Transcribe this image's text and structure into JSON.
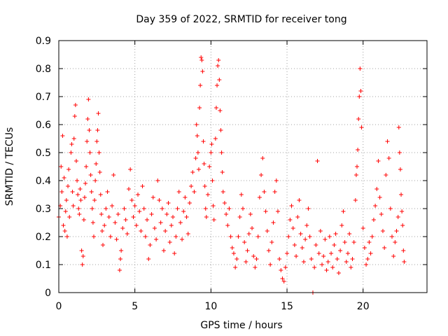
{
  "chart_data": {
    "type": "scatter",
    "title": "Day 359 of 2022, SRMTID for receiver tong",
    "xlabel": "GPS time / hours",
    "ylabel": "SRMTID / TECUs",
    "xlim": [
      0,
      24.2
    ],
    "ylim": [
      0,
      0.9
    ],
    "xticks": [
      0,
      5,
      10,
      15,
      20
    ],
    "yticks": [
      0,
      0.1,
      0.2,
      0.3,
      0.4,
      0.5,
      0.6,
      0.7,
      0.8,
      0.9
    ],
    "xtick_labels": [
      "0",
      "5",
      "10",
      "15",
      "20"
    ],
    "ytick_labels": [
      "0",
      "0.1",
      "0.2",
      "0.3",
      "0.4",
      "0.5",
      "0.6",
      "0.7",
      "0.8",
      "0.9"
    ],
    "grid": true,
    "marker": "plus",
    "color": "#ff0000",
    "series": [
      {
        "name": "SRMTID",
        "points": [
          [
            0.0,
            0.27
          ],
          [
            0.1,
            0.31
          ],
          [
            0.15,
            0.45
          ],
          [
            0.2,
            0.36
          ],
          [
            0.25,
            0.56
          ],
          [
            0.3,
            0.24
          ],
          [
            0.35,
            0.41
          ],
          [
            0.4,
            0.22
          ],
          [
            0.45,
            0.29
          ],
          [
            0.5,
            0.33
          ],
          [
            0.55,
            0.2
          ],
          [
            0.6,
            0.38
          ],
          [
            0.65,
            0.44
          ],
          [
            0.7,
            0.27
          ],
          [
            0.8,
            0.5
          ],
          [
            0.85,
            0.53
          ],
          [
            0.9,
            0.36
          ],
          [
            0.95,
            0.31
          ],
          [
            1.0,
            0.55
          ],
          [
            1.05,
            0.63
          ],
          [
            1.1,
            0.67
          ],
          [
            1.15,
            0.47
          ],
          [
            1.2,
            0.4
          ],
          [
            1.25,
            0.35
          ],
          [
            1.3,
            0.3
          ],
          [
            1.35,
            0.28
          ],
          [
            1.4,
            0.37
          ],
          [
            1.45,
            0.33
          ],
          [
            1.5,
            0.15
          ],
          [
            1.55,
            0.1
          ],
          [
            1.6,
            0.13
          ],
          [
            1.65,
            0.26
          ],
          [
            1.7,
            0.34
          ],
          [
            1.75,
            0.39
          ],
          [
            1.8,
            0.45
          ],
          [
            1.85,
            0.54
          ],
          [
            1.9,
            0.62
          ],
          [
            1.95,
            0.69
          ],
          [
            2.0,
            0.58
          ],
          [
            2.05,
            0.5
          ],
          [
            2.1,
            0.42
          ],
          [
            2.15,
            0.36
          ],
          [
            2.2,
            0.3
          ],
          [
            2.25,
            0.25
          ],
          [
            2.3,
            0.2
          ],
          [
            2.35,
            0.33
          ],
          [
            2.4,
            0.4
          ],
          [
            2.45,
            0.46
          ],
          [
            2.5,
            0.54
          ],
          [
            2.55,
            0.58
          ],
          [
            2.6,
            0.64
          ],
          [
            2.65,
            0.5
          ],
          [
            2.7,
            0.43
          ],
          [
            2.75,
            0.35
          ],
          [
            2.8,
            0.28
          ],
          [
            2.85,
            0.22
          ],
          [
            2.9,
            0.17
          ],
          [
            3.0,
            0.24
          ],
          [
            3.1,
            0.3
          ],
          [
            3.2,
            0.36
          ],
          [
            3.3,
            0.27
          ],
          [
            3.4,
            0.2
          ],
          [
            3.5,
            0.31
          ],
          [
            3.6,
            0.42
          ],
          [
            3.7,
            0.25
          ],
          [
            3.8,
            0.19
          ],
          [
            3.9,
            0.28
          ],
          [
            4.0,
            0.08
          ],
          [
            4.05,
            0.12
          ],
          [
            4.1,
            0.15
          ],
          [
            4.2,
            0.23
          ],
          [
            4.3,
            0.3
          ],
          [
            4.4,
            0.26
          ],
          [
            4.5,
            0.21
          ],
          [
            4.6,
            0.37
          ],
          [
            4.7,
            0.44
          ],
          [
            4.8,
            0.33
          ],
          [
            4.9,
            0.27
          ],
          [
            5.0,
            0.31
          ],
          [
            5.1,
            0.24
          ],
          [
            5.2,
            0.35
          ],
          [
            5.3,
            0.29
          ],
          [
            5.4,
            0.22
          ],
          [
            5.5,
            0.38
          ],
          [
            5.6,
            0.3
          ],
          [
            5.7,
            0.2
          ],
          [
            5.8,
            0.26
          ],
          [
            5.9,
            0.12
          ],
          [
            6.0,
            0.17
          ],
          [
            6.1,
            0.28
          ],
          [
            6.2,
            0.34
          ],
          [
            6.3,
            0.23
          ],
          [
            6.4,
            0.19
          ],
          [
            6.5,
            0.4
          ],
          [
            6.6,
            0.33
          ],
          [
            6.7,
            0.25
          ],
          [
            6.8,
            0.3
          ],
          [
            6.9,
            0.15
          ],
          [
            7.0,
            0.22
          ],
          [
            7.1,
            0.28
          ],
          [
            7.2,
            0.32
          ],
          [
            7.3,
            0.18
          ],
          [
            7.4,
            0.24
          ],
          [
            7.5,
            0.27
          ],
          [
            7.6,
            0.14
          ],
          [
            7.7,
            0.2
          ],
          [
            7.8,
            0.3
          ],
          [
            7.9,
            0.36
          ],
          [
            8.0,
            0.25
          ],
          [
            8.1,
            0.19
          ],
          [
            8.2,
            0.29
          ],
          [
            8.3,
            0.34
          ],
          [
            8.4,
            0.27
          ],
          [
            8.5,
            0.21
          ],
          [
            8.6,
            0.32
          ],
          [
            8.7,
            0.38
          ],
          [
            8.8,
            0.43
          ],
          [
            8.9,
            0.36
          ],
          [
            9.0,
            0.48
          ],
          [
            9.05,
            0.6
          ],
          [
            9.1,
            0.56
          ],
          [
            9.15,
            0.5
          ],
          [
            9.2,
            0.44
          ],
          [
            9.25,
            0.66
          ],
          [
            9.3,
            0.74
          ],
          [
            9.35,
            0.84
          ],
          [
            9.4,
            0.83
          ],
          [
            9.45,
            0.79
          ],
          [
            9.5,
            0.54
          ],
          [
            9.55,
            0.46
          ],
          [
            9.6,
            0.38
          ],
          [
            9.65,
            0.3
          ],
          [
            9.7,
            0.27
          ],
          [
            9.8,
            0.35
          ],
          [
            9.9,
            0.45
          ],
          [
            10.0,
            0.5
          ],
          [
            10.05,
            0.53
          ],
          [
            10.1,
            0.4
          ],
          [
            10.15,
            0.31
          ],
          [
            10.2,
            0.26
          ],
          [
            10.3,
            0.55
          ],
          [
            10.35,
            0.66
          ],
          [
            10.4,
            0.74
          ],
          [
            10.45,
            0.81
          ],
          [
            10.5,
            0.83
          ],
          [
            10.55,
            0.76
          ],
          [
            10.6,
            0.65
          ],
          [
            10.65,
            0.58
          ],
          [
            10.7,
            0.5
          ],
          [
            10.75,
            0.43
          ],
          [
            10.8,
            0.36
          ],
          [
            10.9,
            0.32
          ],
          [
            11.0,
            0.28
          ],
          [
            11.1,
            0.24
          ],
          [
            11.2,
            0.3
          ],
          [
            11.3,
            0.2
          ],
          [
            11.4,
            0.16
          ],
          [
            11.5,
            0.14
          ],
          [
            11.6,
            0.09
          ],
          [
            11.7,
            0.12
          ],
          [
            11.8,
            0.2
          ],
          [
            11.9,
            0.27
          ],
          [
            12.0,
            0.35
          ],
          [
            12.1,
            0.3
          ],
          [
            12.2,
            0.18
          ],
          [
            12.3,
            0.11
          ],
          [
            12.4,
            0.15
          ],
          [
            12.5,
            0.21
          ],
          [
            12.6,
            0.28
          ],
          [
            12.7,
            0.23
          ],
          [
            12.8,
            0.13
          ],
          [
            12.9,
            0.09
          ],
          [
            13.0,
            0.12
          ],
          [
            13.1,
            0.2
          ],
          [
            13.2,
            0.34
          ],
          [
            13.3,
            0.42
          ],
          [
            13.4,
            0.48
          ],
          [
            13.5,
            0.36
          ],
          [
            13.6,
            0.29
          ],
          [
            13.7,
            0.22
          ],
          [
            13.8,
            0.15
          ],
          [
            13.9,
            0.1
          ],
          [
            14.0,
            0.18
          ],
          [
            14.1,
            0.25
          ],
          [
            14.2,
            0.36
          ],
          [
            14.3,
            0.4
          ],
          [
            14.4,
            0.29
          ],
          [
            14.5,
            0.12
          ],
          [
            14.6,
            0.08
          ],
          [
            14.7,
            0.05
          ],
          [
            14.8,
            0.04
          ],
          [
            14.9,
            0.09
          ],
          [
            15.0,
            0.14
          ],
          [
            15.1,
            0.2
          ],
          [
            15.2,
            0.26
          ],
          [
            15.3,
            0.31
          ],
          [
            15.4,
            0.23
          ],
          [
            15.5,
            0.17
          ],
          [
            15.6,
            0.13
          ],
          [
            15.7,
            0.27
          ],
          [
            15.8,
            0.33
          ],
          [
            15.9,
            0.21
          ],
          [
            16.0,
            0.16
          ],
          [
            16.1,
            0.11
          ],
          [
            16.2,
            0.19
          ],
          [
            16.3,
            0.24
          ],
          [
            16.4,
            0.3
          ],
          [
            16.5,
            0.2
          ],
          [
            16.6,
            0.12
          ],
          [
            16.7,
            0.0
          ],
          [
            16.8,
            0.09
          ],
          [
            16.9,
            0.17
          ],
          [
            17.0,
            0.47
          ],
          [
            17.1,
            0.14
          ],
          [
            17.2,
            0.22
          ],
          [
            17.3,
            0.1
          ],
          [
            17.4,
            0.13
          ],
          [
            17.5,
            0.19
          ],
          [
            17.6,
            0.08
          ],
          [
            17.7,
            0.11
          ],
          [
            17.8,
            0.2
          ],
          [
            17.9,
            0.14
          ],
          [
            18.0,
            0.09
          ],
          [
            18.1,
            0.17
          ],
          [
            18.2,
            0.21
          ],
          [
            18.3,
            0.12
          ],
          [
            18.4,
            0.07
          ],
          [
            18.5,
            0.15
          ],
          [
            18.6,
            0.24
          ],
          [
            18.7,
            0.29
          ],
          [
            18.8,
            0.18
          ],
          [
            18.9,
            0.11
          ],
          [
            19.0,
            0.14
          ],
          [
            19.1,
            0.21
          ],
          [
            19.2,
            0.09
          ],
          [
            19.3,
            0.12
          ],
          [
            19.4,
            0.18
          ],
          [
            19.5,
            0.33
          ],
          [
            19.55,
            0.42
          ],
          [
            19.6,
            0.45
          ],
          [
            19.65,
            0.51
          ],
          [
            19.7,
            0.62
          ],
          [
            19.75,
            0.7
          ],
          [
            19.8,
            0.8
          ],
          [
            19.85,
            0.72
          ],
          [
            19.9,
            0.59
          ],
          [
            20.0,
            0.23
          ],
          [
            20.1,
            0.16
          ],
          [
            20.2,
            0.1
          ],
          [
            20.3,
            0.12
          ],
          [
            20.4,
            0.18
          ],
          [
            20.5,
            0.14
          ],
          [
            20.6,
            0.2
          ],
          [
            20.7,
            0.26
          ],
          [
            20.8,
            0.31
          ],
          [
            20.9,
            0.37
          ],
          [
            21.0,
            0.47
          ],
          [
            21.1,
            0.34
          ],
          [
            21.2,
            0.28
          ],
          [
            21.3,
            0.22
          ],
          [
            21.4,
            0.16
          ],
          [
            21.5,
            0.42
          ],
          [
            21.6,
            0.54
          ],
          [
            21.7,
            0.48
          ],
          [
            21.8,
            0.3
          ],
          [
            21.9,
            0.2
          ],
          [
            22.0,
            0.13
          ],
          [
            22.1,
            0.18
          ],
          [
            22.2,
            0.22
          ],
          [
            22.3,
            0.27
          ],
          [
            22.35,
            0.59
          ],
          [
            22.4,
            0.5
          ],
          [
            22.45,
            0.44
          ],
          [
            22.5,
            0.35
          ],
          [
            22.55,
            0.29
          ],
          [
            22.6,
            0.24
          ],
          [
            22.65,
            0.15
          ],
          [
            22.7,
            0.11
          ]
        ]
      }
    ]
  }
}
